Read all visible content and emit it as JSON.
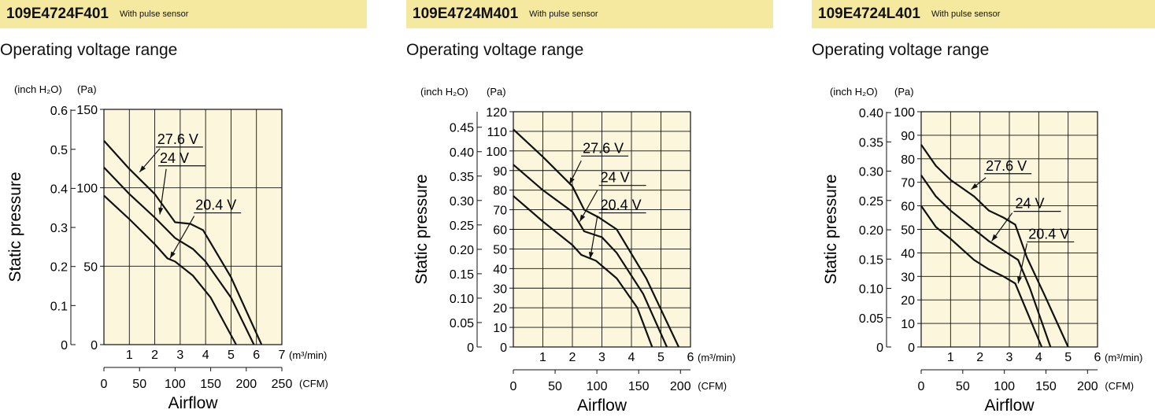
{
  "colors": {
    "banner": "#f5e9a0",
    "plot_bg": "#fbf6dc",
    "line": "#111111"
  },
  "panels": [
    {
      "model": "109E4724F401",
      "note": "With pulse sensor",
      "section_title": "Operating voltage range"
    },
    {
      "model": "109E4724M401",
      "note": "With pulse sensor",
      "section_title": "Operating voltage range"
    },
    {
      "model": "109E4724L401",
      "note": "With pulse sensor",
      "section_title": "Operating voltage range"
    }
  ],
  "chart_data": [
    {
      "type": "line",
      "title": "Operating voltage range",
      "ylabel": "Static pressure",
      "xlabel": "Airflow",
      "xlim": [
        0,
        7
      ],
      "ylim": [
        0,
        150
      ],
      "x_unit": "(m³/min)",
      "x2_unit": "(CFM)",
      "y_unit": "(Pa)",
      "y2_unit": "(inch H₂O)",
      "x_ticks": [
        1,
        2,
        3,
        4,
        5,
        6,
        7
      ],
      "x2_ticks": [
        0,
        50,
        100,
        150,
        200,
        250
      ],
      "y_ticks": [
        0,
        50,
        100,
        150
      ],
      "y2_ticks": [
        "0",
        "0.1",
        "0.2",
        "0.3",
        "0.4",
        "0.5",
        "0.6"
      ],
      "series": [
        {
          "name": "27.6 V",
          "label_at": [
            2.1,
            128
          ],
          "points": [
            [
              0,
              130
            ],
            [
              1,
              112
            ],
            [
              2,
              96
            ],
            [
              2.8,
              78
            ],
            [
              3.4,
              77
            ],
            [
              3.9,
              73
            ],
            [
              5,
              43
            ],
            [
              6.2,
              0
            ]
          ]
        },
        {
          "name": "24 V",
          "label_at": [
            2.2,
            116
          ],
          "points": [
            [
              0,
              113
            ],
            [
              1,
              96
            ],
            [
              2,
              81
            ],
            [
              2.8,
              68
            ],
            [
              3.5,
              61
            ],
            [
              4,
              53
            ],
            [
              5,
              30
            ],
            [
              5.9,
              0
            ]
          ]
        },
        {
          "name": "20.4 V",
          "label_at": [
            3.6,
            86
          ],
          "points": [
            [
              0,
              95
            ],
            [
              1,
              80
            ],
            [
              2,
              64
            ],
            [
              2.5,
              55
            ],
            [
              2.8,
              53
            ],
            [
              3.5,
              44
            ],
            [
              4.2,
              30
            ],
            [
              5.2,
              0
            ]
          ]
        }
      ],
      "leaders": [
        {
          "from": [
            1.4,
            110
          ],
          "to": [
            2.2,
            125
          ]
        },
        {
          "from": [
            2.2,
            83
          ],
          "to": [
            2.45,
            112
          ]
        },
        {
          "from": [
            2.6,
            55
          ],
          "to": [
            3.55,
            82
          ]
        }
      ]
    },
    {
      "type": "line",
      "title": "Operating voltage range",
      "ylabel": "Static pressure",
      "xlabel": "Airflow",
      "xlim": [
        0,
        6
      ],
      "ylim": [
        0,
        120
      ],
      "x_unit": "(m³/min)",
      "x2_unit": "(CFM)",
      "y_unit": "(Pa)",
      "y2_unit": "(inch H₂O)",
      "x_ticks": [
        1,
        2,
        3,
        4,
        5,
        6
      ],
      "x2_ticks": [
        0,
        50,
        100,
        150,
        200
      ],
      "y_ticks": [
        0,
        10,
        20,
        30,
        40,
        50,
        60,
        70,
        80,
        90,
        100,
        110,
        120
      ],
      "y2_ticks": [
        "0",
        "0.05",
        "0.10",
        "0.15",
        "0.20",
        "0.25",
        "0.30",
        "0.35",
        "0.40",
        "0.45"
      ],
      "series": [
        {
          "name": "27.6 V",
          "label_at": [
            2.35,
            99
          ],
          "points": [
            [
              0,
              111
            ],
            [
              1,
              97
            ],
            [
              2,
              82
            ],
            [
              2.4,
              70
            ],
            [
              2.9,
              66
            ],
            [
              3.5,
              60
            ],
            [
              4.5,
              35
            ],
            [
              5.6,
              0
            ]
          ]
        },
        {
          "name": "24 V",
          "label_at": [
            2.95,
            84
          ],
          "points": [
            [
              0,
              93
            ],
            [
              1,
              80
            ],
            [
              2,
              69
            ],
            [
              2.4,
              59
            ],
            [
              3,
              56
            ],
            [
              3.5,
              48
            ],
            [
              4.4,
              27
            ],
            [
              5.2,
              0
            ]
          ]
        },
        {
          "name": "20.4 V",
          "label_at": [
            2.95,
            70
          ],
          "points": [
            [
              0,
              77
            ],
            [
              1,
              64
            ],
            [
              2,
              52
            ],
            [
              2.3,
              47
            ],
            [
              2.8,
              44
            ],
            [
              3.5,
              35
            ],
            [
              4.2,
              20
            ],
            [
              4.7,
              0
            ]
          ]
        }
      ],
      "leaders": [
        {
          "from": [
            1.9,
            83
          ],
          "to": [
            2.3,
            95
          ]
        },
        {
          "from": [
            2.25,
            64
          ],
          "to": [
            2.85,
            80
          ]
        },
        {
          "from": [
            2.6,
            45
          ],
          "to": [
            2.85,
            67
          ]
        }
      ]
    },
    {
      "type": "line",
      "title": "Operating voltage range",
      "ylabel": "Static pressure",
      "xlabel": "Airflow",
      "xlim": [
        0,
        6
      ],
      "ylim": [
        0,
        100
      ],
      "x_unit": "(m³/min)",
      "x2_unit": "(CFM)",
      "y_unit": "(Pa)",
      "y2_unit": "(inch H₂O)",
      "x_ticks": [
        1,
        2,
        3,
        4,
        5,
        6
      ],
      "x2_ticks": [
        0,
        50,
        100,
        150,
        200
      ],
      "y_ticks": [
        0,
        10,
        20,
        30,
        40,
        50,
        60,
        70,
        80,
        90,
        100
      ],
      "y2_ticks": [
        "0",
        "0.05",
        "0.10",
        "0.15",
        "0.20",
        "0.25",
        "0.30",
        "0.35",
        "0.40"
      ],
      "series": [
        {
          "name": "27.6 V",
          "label_at": [
            2.2,
            75
          ],
          "points": [
            [
              0,
              86
            ],
            [
              0.5,
              77
            ],
            [
              1,
              71
            ],
            [
              1.8,
              64
            ],
            [
              2.3,
              58
            ],
            [
              2.8,
              55
            ],
            [
              3.2,
              52
            ],
            [
              3.6,
              38
            ],
            [
              4.2,
              22
            ],
            [
              5,
              0
            ]
          ]
        },
        {
          "name": "24 V",
          "label_at": [
            3.2,
            59
          ],
          "points": [
            [
              0,
              73
            ],
            [
              0.5,
              64
            ],
            [
              1,
              58
            ],
            [
              1.8,
              50
            ],
            [
              2.3,
              45
            ],
            [
              2.8,
              41
            ],
            [
              3.3,
              37
            ],
            [
              3.7,
              25
            ],
            [
              4.4,
              0
            ]
          ]
        },
        {
          "name": "20.4 V",
          "label_at": [
            3.65,
            46
          ],
          "points": [
            [
              0,
              60
            ],
            [
              0.5,
              51
            ],
            [
              1,
              46
            ],
            [
              1.8,
              37
            ],
            [
              2.3,
              33
            ],
            [
              2.8,
              30
            ],
            [
              3.2,
              27
            ],
            [
              3.6,
              15
            ],
            [
              4.1,
              0
            ]
          ]
        }
      ],
      "leaders": [
        {
          "from": [
            1.7,
            67
          ],
          "to": [
            2.2,
            72
          ]
        },
        {
          "from": [
            2.4,
            45
          ],
          "to": [
            3.1,
            57
          ]
        },
        {
          "from": [
            3.3,
            27
          ],
          "to": [
            3.6,
            44
          ]
        }
      ]
    }
  ]
}
